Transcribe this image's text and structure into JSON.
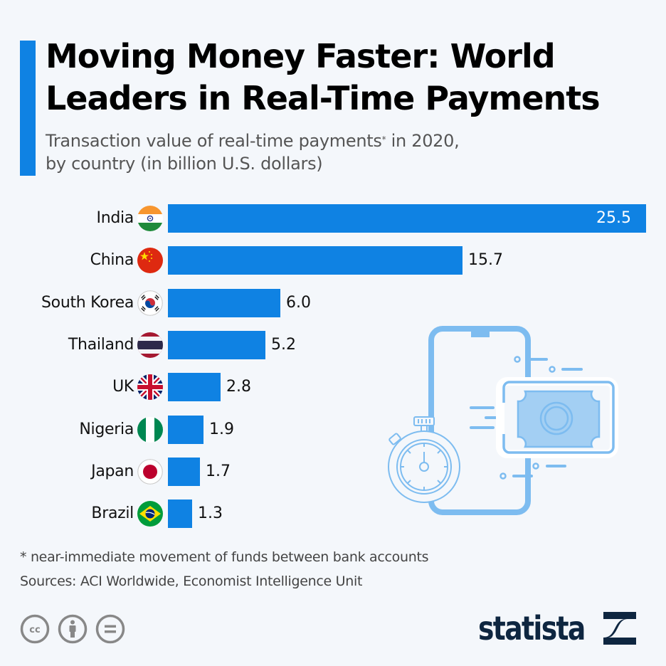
{
  "header": {
    "title": "Moving Money Faster: World Leaders in Real-Time Payments",
    "subtitle_line1": "Transaction value of real-time payments",
    "subtitle_sup": "*",
    "subtitle_line1_end": " in 2020,",
    "subtitle_line2": "by country (in billion U.S. dollars)"
  },
  "colors": {
    "accent": "#0f82e3",
    "bar": "#0f82e3",
    "illustration": "#7dbcf0",
    "logo": "#0e2640"
  },
  "rows": [
    {
      "country": "India",
      "value": "25.5",
      "flag": "india-flag"
    },
    {
      "country": "China",
      "value": "15.7",
      "flag": "china-flag"
    },
    {
      "country": "South Korea",
      "value": "6.0",
      "flag": "south-korea-flag"
    },
    {
      "country": "Thailand",
      "value": "5.2",
      "flag": "thailand-flag"
    },
    {
      "country": "UK",
      "value": "2.8",
      "flag": "uk-flag"
    },
    {
      "country": "Nigeria",
      "value": "1.9",
      "flag": "nigeria-flag"
    },
    {
      "country": "Japan",
      "value": "1.7",
      "flag": "japan-flag"
    },
    {
      "country": "Brazil",
      "value": "1.3",
      "flag": "brazil-flag"
    }
  ],
  "chart_data": {
    "type": "bar",
    "orientation": "horizontal",
    "title": "Moving Money Faster: World Leaders in Real-Time Payments",
    "subtitle": "Transaction value of real-time payments* in 2020, by country (in billion U.S. dollars)",
    "categories": [
      "India",
      "China",
      "South Korea",
      "Thailand",
      "UK",
      "Nigeria",
      "Japan",
      "Brazil"
    ],
    "values": [
      25.5,
      15.7,
      6.0,
      5.2,
      2.8,
      1.9,
      1.7,
      1.3
    ],
    "xlabel": "",
    "ylabel": "",
    "unit": "billion U.S. dollars",
    "xlim": [
      0,
      25.5
    ],
    "grid": false,
    "data_labels": true,
    "legend": "none"
  },
  "footer": {
    "footnote": "* near-immediate movement of funds between bank accounts",
    "sources": "Sources: ACI Worldwide, Economist Intelligence Unit",
    "license_icons": [
      "cc-icon",
      "attribution-icon",
      "no-derivatives-icon"
    ],
    "logo_text": "statista"
  }
}
